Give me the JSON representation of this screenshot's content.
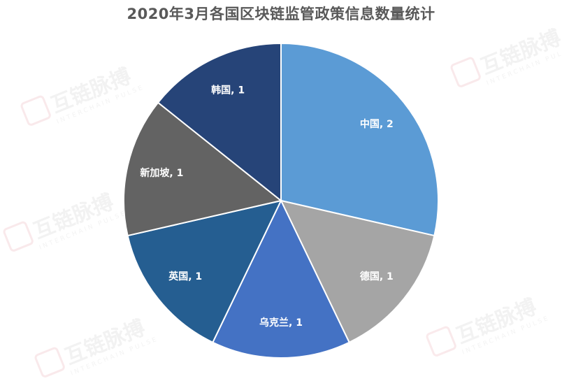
{
  "chart_data": {
    "type": "pie",
    "title": "2020年3月各国区块链监管政策信息数量统计",
    "slices": [
      {
        "label": "中国",
        "value": 2,
        "color": "#5b9bd5",
        "text": "中国, 2"
      },
      {
        "label": "德国",
        "value": 1,
        "color": "#a5a5a5",
        "text": "德国, 1"
      },
      {
        "label": "乌克兰",
        "value": 1,
        "color": "#4472c4",
        "text": "乌克兰, 1"
      },
      {
        "label": "英国",
        "value": 1,
        "color": "#255e91",
        "text": "英国, 1"
      },
      {
        "label": "新加坡",
        "value": 1,
        "color": "#636363",
        "text": "新加坡, 1"
      },
      {
        "label": "韩国",
        "value": 1,
        "color": "#264478",
        "text": "韩国, 1"
      }
    ],
    "legend": "none"
  },
  "watermark": {
    "name": "互链脉搏",
    "sub": "INTERCHAIN PULSE"
  }
}
